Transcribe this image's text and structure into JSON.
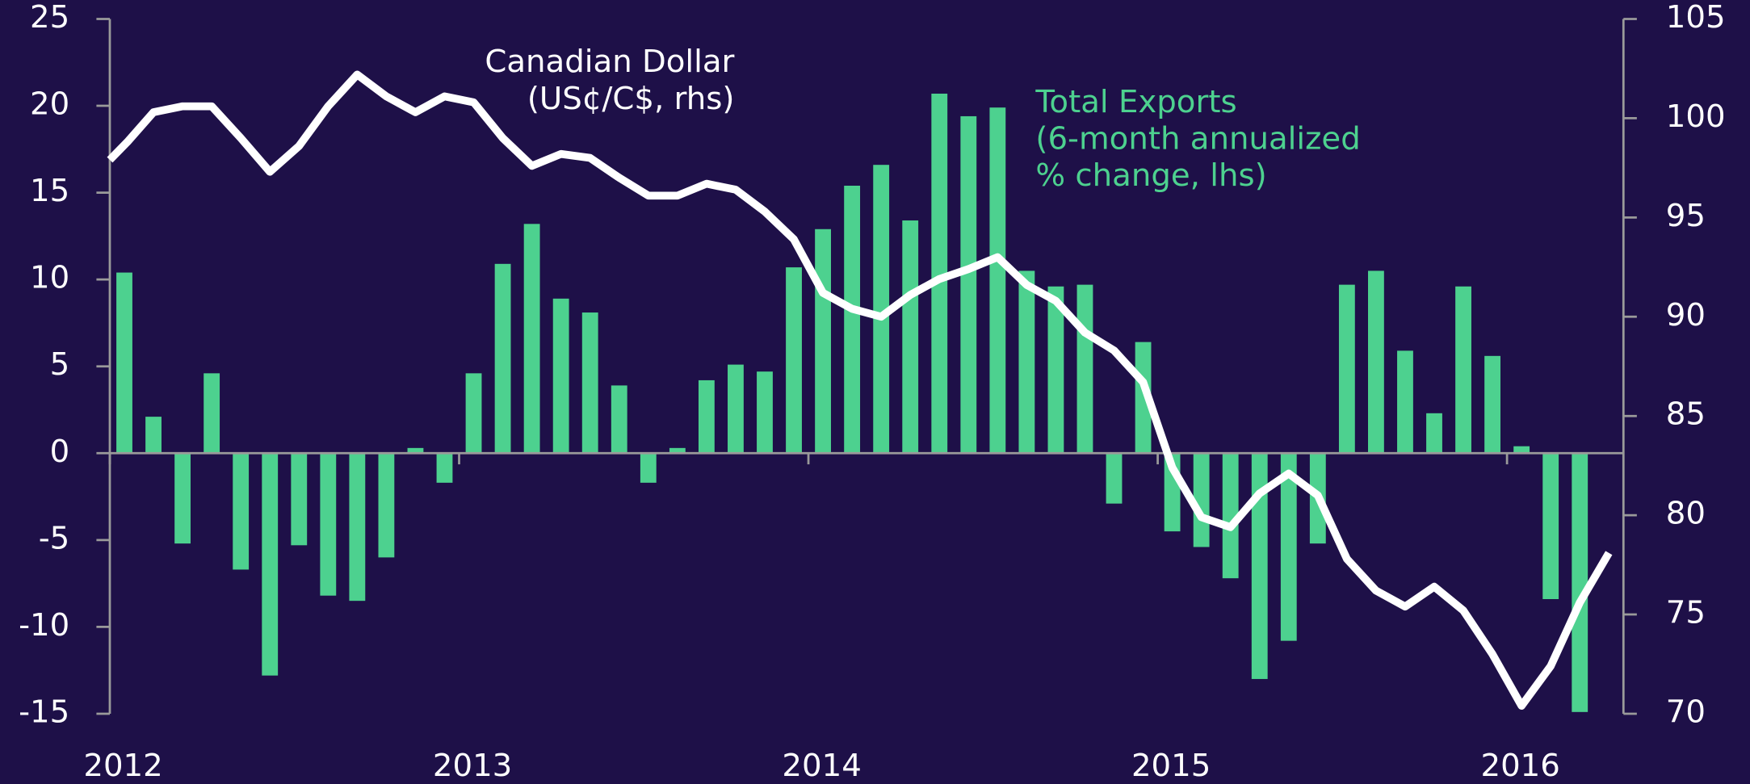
{
  "chart_data": {
    "type": "bar+line",
    "xlim": [
      0,
      52
    ],
    "xticks": [
      {
        "value": 0,
        "label": "2012"
      },
      {
        "value": 12,
        "label": "2013"
      },
      {
        "value": 24,
        "label": "2014"
      },
      {
        "value": 36,
        "label": "2015"
      },
      {
        "value": 48,
        "label": "2016"
      }
    ],
    "ylim": [
      -15,
      25
    ],
    "yticks": [
      25,
      20,
      15,
      10,
      5,
      0,
      -5,
      -10,
      -15
    ],
    "y2lim": [
      70,
      105
    ],
    "y2ticks": [
      105,
      100,
      95,
      90,
      85,
      80,
      75,
      70
    ],
    "series": [
      {
        "name": "Total Exports",
        "note": [
          "(6-month annualized",
          "% change, lhs)"
        ],
        "type": "bar",
        "color": "#4dd18f",
        "x": [
          0.5,
          1.5,
          2.5,
          3.5,
          4.5,
          5.5,
          6.5,
          7.5,
          8.5,
          9.5,
          10.5,
          11.5,
          12.5,
          13.5,
          14.5,
          15.5,
          16.5,
          17.5,
          18.5,
          19.5,
          20.5,
          21.5,
          22.5,
          23.5,
          24.5,
          25.5,
          26.5,
          27.5,
          28.5,
          29.5,
          30.5,
          31.5,
          32.5,
          33.5,
          34.5,
          35.5,
          36.5,
          37.5,
          38.5,
          39.5,
          40.5,
          41.5,
          42.5,
          43.5,
          44.5,
          45.5,
          46.5,
          47.5,
          48.5,
          49.5,
          50.5
        ],
        "values": [
          10.4,
          2.1,
          -5.2,
          4.6,
          -6.7,
          -12.8,
          -5.3,
          -8.2,
          -8.5,
          -6.0,
          0.3,
          -1.7,
          4.6,
          10.9,
          13.2,
          8.9,
          8.1,
          3.9,
          -1.7,
          0.3,
          4.2,
          5.1,
          4.7,
          10.7,
          12.9,
          15.4,
          16.6,
          13.4,
          20.7,
          19.4,
          19.9,
          10.5,
          9.6,
          9.7,
          -2.9,
          6.4,
          -4.5,
          -5.4,
          -7.2,
          -13.0,
          -10.8,
          -5.2,
          9.7,
          10.5,
          5.9,
          2.3,
          9.6,
          5.6,
          0.4,
          -8.4,
          -14.9
        ]
      },
      {
        "name": "Canadian Dollar",
        "note": [
          "(US¢/C$, rhs)"
        ],
        "type": "line",
        "axis": "y2",
        "color": "#ffffff",
        "x": [
          0,
          0.6,
          1.5,
          2.5,
          3.5,
          4.5,
          5.5,
          6.5,
          7.5,
          8.5,
          9.5,
          10.5,
          11.5,
          12.5,
          13.5,
          14.5,
          15.5,
          16.5,
          17.5,
          18.5,
          19.5,
          20.5,
          21.5,
          22.5,
          23.5,
          24.5,
          25.5,
          26.5,
          27.5,
          28.5,
          29.5,
          30.5,
          31.5,
          32.5,
          33.5,
          34.5,
          35.5,
          36.5,
          37.5,
          38.5,
          39.5,
          40.5,
          41.5,
          42.5,
          43.5,
          44.5,
          45.5,
          46.5,
          47.5,
          48.5,
          49.5,
          50.5,
          51.5
        ],
        "values": [
          97.9,
          98.8,
          100.3,
          100.6,
          100.6,
          99.0,
          97.3,
          98.6,
          100.6,
          102.2,
          101.1,
          100.3,
          101.1,
          100.8,
          99.0,
          97.6,
          98.2,
          98.0,
          97.0,
          96.1,
          96.1,
          96.7,
          96.4,
          95.3,
          93.9,
          91.2,
          90.4,
          90.0,
          91.1,
          91.9,
          92.4,
          93.0,
          91.6,
          90.8,
          89.2,
          88.3,
          86.7,
          82.4,
          79.9,
          79.4,
          81.1,
          82.1,
          81.0,
          77.8,
          76.2,
          75.4,
          76.4,
          75.2,
          73.0,
          70.4,
          72.4,
          75.6,
          78.1
        ]
      }
    ]
  }
}
